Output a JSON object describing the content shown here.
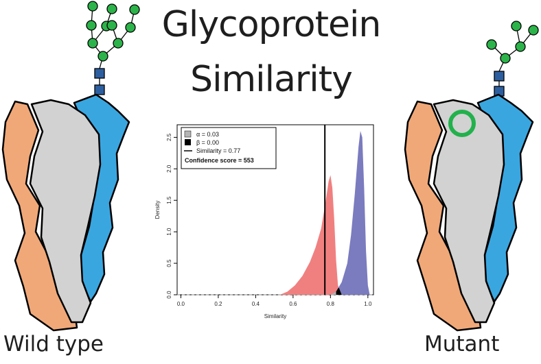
{
  "title": {
    "line1": "Glycoprotein",
    "line2": "Similarity"
  },
  "labels": {
    "wild_type": "Wild type",
    "mutant": "Mutant"
  },
  "colors": {
    "domain_orange": "#f0a878",
    "domain_gray": "#d2d2d2",
    "domain_blue": "#3aa6e0",
    "glycan_mannose": "#2cb34a",
    "glycan_glcnac": "#2d5fa0",
    "mutation_ring": "#22b14c",
    "series_alpha_fill": "#f08080",
    "series_beta_fill": "#7b7bbf"
  },
  "chart_data": {
    "type": "area",
    "xlabel": "Similarity",
    "ylabel": "Density",
    "xlim": [
      -0.02,
      1.03
    ],
    "ylim": [
      0,
      2.7
    ],
    "xticks": [
      "0.0",
      "0.2",
      "0.4",
      "0.6",
      "0.8",
      "1.0"
    ],
    "yticks": [
      "0.0",
      "0.5",
      "1.0",
      "1.5",
      "2.0",
      "2.5"
    ],
    "series": [
      {
        "color": "#f08080",
        "x": [
          0.53,
          0.57,
          0.61,
          0.65,
          0.69,
          0.72,
          0.75,
          0.77,
          0.79,
          0.8,
          0.81,
          0.82,
          0.83,
          0.84,
          0.86
        ],
        "y": [
          0.0,
          0.05,
          0.15,
          0.3,
          0.52,
          0.75,
          1.05,
          1.4,
          1.8,
          1.9,
          1.7,
          1.2,
          0.55,
          0.15,
          0.0
        ]
      },
      {
        "color": "#7b7bbf",
        "x": [
          0.8,
          0.83,
          0.86,
          0.89,
          0.91,
          0.93,
          0.95,
          0.96,
          0.97,
          0.98,
          0.99,
          1.0,
          1.01
        ],
        "y": [
          0.0,
          0.05,
          0.2,
          0.5,
          0.95,
          1.6,
          2.35,
          2.6,
          2.5,
          1.7,
          0.7,
          0.15,
          0.0
        ]
      }
    ],
    "legend": {
      "position": "top-left",
      "items": [
        {
          "label": "α = 0.03",
          "marker": "gray-square"
        },
        {
          "label": "β = 0.00",
          "marker": "black-square"
        },
        {
          "label": "Similarity = 0.77",
          "marker": "line"
        }
      ],
      "note": "Confidence score = 553"
    },
    "vline": 0.77,
    "alpha_region": [
      0.8,
      0.86
    ],
    "beta_region": [
      0.83,
      0.86
    ]
  }
}
